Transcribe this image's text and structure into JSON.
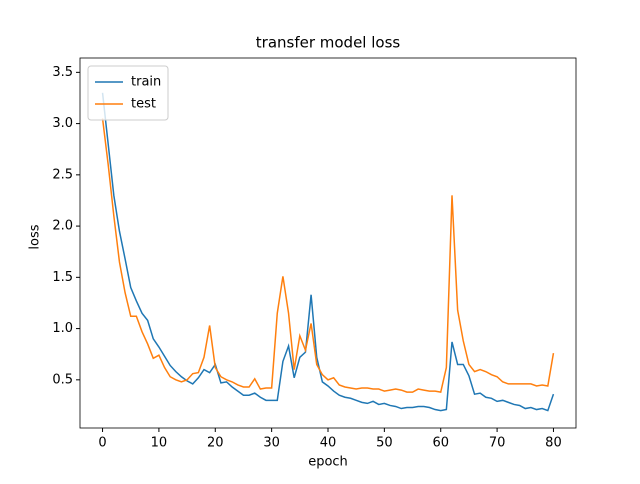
{
  "chart_data": {
    "type": "line",
    "title": "transfer model loss",
    "x_label": "epoch",
    "y_label": "loss",
    "x": [
      0,
      1,
      2,
      3,
      4,
      5,
      6,
      7,
      8,
      9,
      10,
      11,
      12,
      13,
      14,
      15,
      16,
      17,
      18,
      19,
      20,
      21,
      22,
      23,
      24,
      25,
      26,
      27,
      28,
      29,
      30,
      31,
      32,
      33,
      34,
      35,
      36,
      37,
      38,
      39,
      40,
      41,
      42,
      43,
      44,
      45,
      46,
      47,
      48,
      49,
      50,
      51,
      52,
      53,
      54,
      55,
      56,
      57,
      58,
      59,
      60,
      61,
      62,
      63,
      64,
      65,
      66,
      67,
      68,
      69,
      70,
      71,
      72,
      73,
      74,
      75,
      76,
      77,
      78,
      79,
      80
    ],
    "series": [
      {
        "name": "train",
        "color": "#1f77b4",
        "values": [
          3.3,
          2.8,
          2.3,
          1.95,
          1.68,
          1.4,
          1.27,
          1.15,
          1.08,
          0.9,
          0.82,
          0.73,
          0.64,
          0.58,
          0.53,
          0.49,
          0.46,
          0.52,
          0.6,
          0.57,
          0.65,
          0.47,
          0.48,
          0.43,
          0.39,
          0.35,
          0.35,
          0.37,
          0.33,
          0.3,
          0.3,
          0.3,
          0.68,
          0.83,
          0.52,
          0.72,
          0.77,
          1.33,
          0.72,
          0.48,
          0.44,
          0.39,
          0.35,
          0.33,
          0.32,
          0.3,
          0.28,
          0.27,
          0.29,
          0.26,
          0.27,
          0.25,
          0.24,
          0.22,
          0.23,
          0.23,
          0.24,
          0.24,
          0.23,
          0.21,
          0.2,
          0.21,
          0.87,
          0.65,
          0.65,
          0.54,
          0.36,
          0.37,
          0.33,
          0.32,
          0.29,
          0.3,
          0.28,
          0.26,
          0.25,
          0.22,
          0.23,
          0.21,
          0.22,
          0.2,
          0.36
        ]
      },
      {
        "name": "test",
        "color": "#ff7f0e",
        "values": [
          3.05,
          2.6,
          2.1,
          1.65,
          1.35,
          1.12,
          1.12,
          0.97,
          0.85,
          0.71,
          0.74,
          0.62,
          0.53,
          0.5,
          0.48,
          0.5,
          0.56,
          0.57,
          0.72,
          1.03,
          0.62,
          0.53,
          0.5,
          0.48,
          0.45,
          0.43,
          0.43,
          0.51,
          0.41,
          0.42,
          0.42,
          1.15,
          1.51,
          1.15,
          0.6,
          0.93,
          0.79,
          1.05,
          0.65,
          0.55,
          0.5,
          0.52,
          0.45,
          0.43,
          0.42,
          0.41,
          0.42,
          0.42,
          0.41,
          0.41,
          0.39,
          0.4,
          0.41,
          0.4,
          0.38,
          0.38,
          0.41,
          0.4,
          0.39,
          0.39,
          0.38,
          0.62,
          2.3,
          1.18,
          0.88,
          0.65,
          0.58,
          0.6,
          0.58,
          0.55,
          0.53,
          0.48,
          0.46,
          0.46,
          0.46,
          0.46,
          0.46,
          0.44,
          0.45,
          0.44,
          0.76
        ]
      }
    ],
    "xlim": [
      -4,
      84
    ],
    "ylim": [
      0.03,
      3.64
    ],
    "xticks": [
      0,
      10,
      20,
      30,
      40,
      50,
      60,
      70,
      80
    ],
    "yticks": [
      0.5,
      {
        "value": 1,
        "label": "1.0"
      },
      1.5,
      {
        "value": 2,
        "label": "2.0"
      },
      2.5,
      {
        "value": 3,
        "label": "3.0"
      },
      3.5
    ],
    "legend": "upper left"
  }
}
